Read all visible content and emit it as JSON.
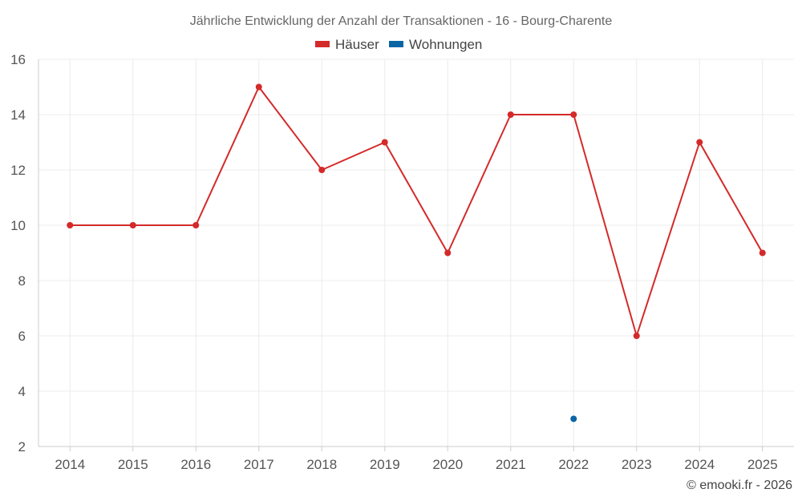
{
  "chart_data": {
    "type": "line",
    "title": "Jährliche Entwicklung der Anzahl der Transaktionen - 16 - Bourg-Charente",
    "categories": [
      "2014",
      "2015",
      "2016",
      "2017",
      "2018",
      "2019",
      "2020",
      "2021",
      "2022",
      "2023",
      "2024",
      "2025"
    ],
    "series": [
      {
        "name": "Häuser",
        "color": "#d42a2a",
        "values": [
          10,
          10,
          10,
          15,
          12,
          13,
          9,
          14,
          14,
          6,
          13,
          9
        ]
      },
      {
        "name": "Wohnungen",
        "color": "#0b65a4",
        "values": [
          null,
          null,
          null,
          null,
          null,
          null,
          null,
          null,
          3,
          null,
          null,
          null
        ]
      }
    ],
    "ylim": [
      2,
      16
    ],
    "yticks": [
      2,
      4,
      6,
      8,
      10,
      12,
      14,
      16
    ],
    "xlabel": "",
    "ylabel": "",
    "grid": true,
    "legend": "top-center"
  },
  "credit": "© emooki.fr - 2026"
}
